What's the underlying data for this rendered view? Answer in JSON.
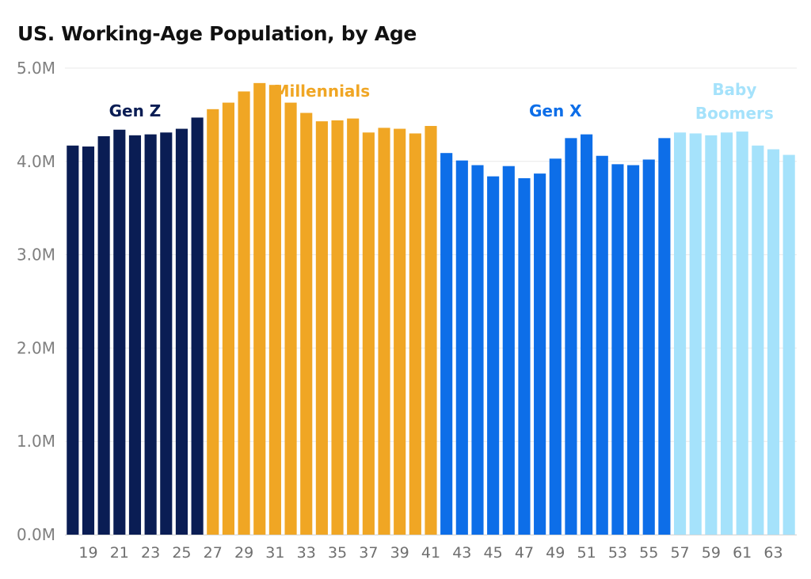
{
  "chart_data": {
    "type": "bar",
    "title": "US. Working-Age Population, by Age",
    "xlabel": "",
    "ylabel": "",
    "ylim": [
      0,
      5000000
    ],
    "yticks": [
      0,
      1000000,
      2000000,
      3000000,
      4000000,
      5000000
    ],
    "ytick_labels": [
      "0.0M",
      "1.0M",
      "2.0M",
      "3.0M",
      "4.0M",
      "5.0M"
    ],
    "grid": true,
    "categories": [
      "18",
      "19",
      "20",
      "21",
      "22",
      "23",
      "24",
      "25",
      "26",
      "27",
      "28",
      "29",
      "30",
      "31",
      "32",
      "33",
      "34",
      "35",
      "36",
      "37",
      "38",
      "39",
      "40",
      "41",
      "42",
      "43",
      "44",
      "45",
      "46",
      "47",
      "48",
      "49",
      "50",
      "51",
      "52",
      "53",
      "54",
      "55",
      "56",
      "57",
      "58",
      "59",
      "60",
      "61",
      "62",
      "63",
      "64"
    ],
    "xtick_labels": [
      "19",
      "21",
      "23",
      "25",
      "27",
      "29",
      "31",
      "33",
      "35",
      "37",
      "39",
      "41",
      "43",
      "45",
      "47",
      "49",
      "51",
      "53",
      "55",
      "57",
      "59",
      "61",
      "63"
    ],
    "values": [
      4170000,
      4160000,
      4270000,
      4340000,
      4280000,
      4290000,
      4310000,
      4350000,
      4470000,
      4560000,
      4630000,
      4750000,
      4840000,
      4820000,
      4630000,
      4520000,
      4430000,
      4440000,
      4460000,
      4310000,
      4360000,
      4350000,
      4300000,
      4380000,
      4090000,
      4010000,
      3960000,
      3840000,
      3950000,
      3820000,
      3870000,
      4030000,
      4250000,
      4290000,
      4060000,
      3970000,
      3960000,
      4020000,
      4250000,
      4310000,
      4300000,
      4280000,
      4310000,
      4320000,
      4170000,
      4130000,
      4070000
    ],
    "groups": [
      {
        "name": "Gen Z",
        "label_lines": [
          "Gen Z"
        ],
        "start": 0,
        "end": 8,
        "color": "#0a1d54"
      },
      {
        "name": "Millennials",
        "label_lines": [
          "Millennials"
        ],
        "start": 9,
        "end": 23,
        "color": "#f0a624"
      },
      {
        "name": "Gen X",
        "label_lines": [
          "Gen X"
        ],
        "start": 24,
        "end": 38,
        "color": "#0d6ee8"
      },
      {
        "name": "Baby Boomers",
        "label_lines": [
          "Baby",
          "Boomers"
        ],
        "start": 39,
        "end": 46,
        "color": "#a5e2fb"
      }
    ]
  }
}
